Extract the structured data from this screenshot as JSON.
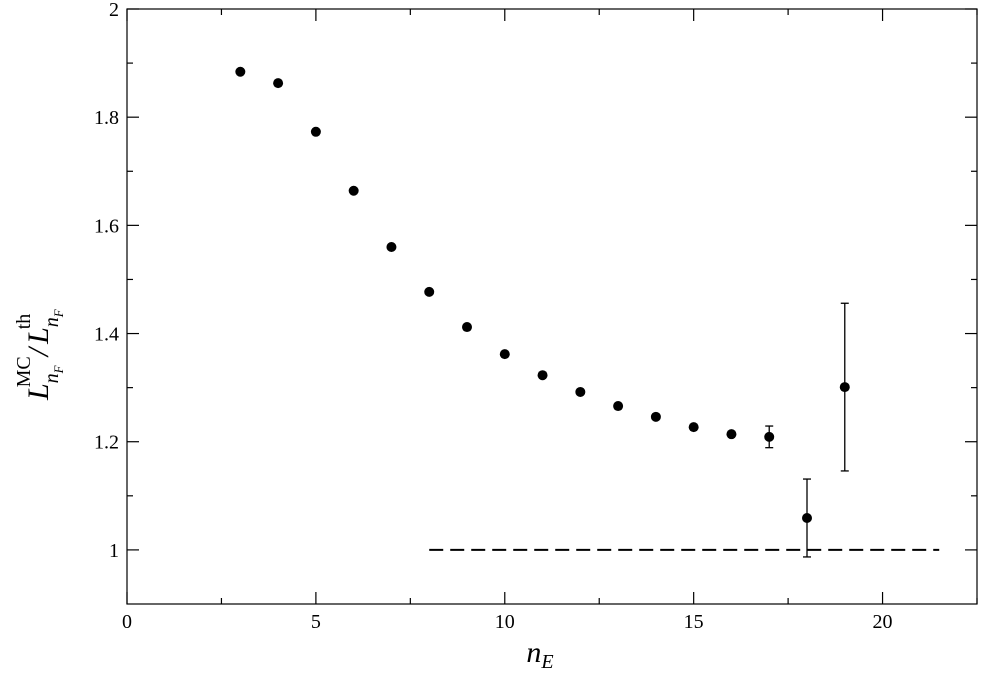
{
  "chart_data": {
    "type": "scatter",
    "x_label": {
      "main": "n",
      "sub": "E"
    },
    "y_label": {
      "num": "L",
      "num_sup": "MC",
      "num_sub": "n",
      "num_subsub": "F",
      "slash": "/",
      "den": "L",
      "den_sup": "th",
      "den_sub": "n",
      "den_subsub": "F"
    },
    "series": [
      {
        "color": "#000000",
        "x": [
          3,
          4,
          5,
          6,
          7,
          8,
          9,
          10,
          11,
          12,
          13,
          14,
          15,
          16,
          17,
          18,
          19
        ],
        "values": [
          1.884,
          1.863,
          1.773,
          1.664,
          1.56,
          1.477,
          1.412,
          1.362,
          1.323,
          1.292,
          1.266,
          1.246,
          1.227,
          1.214,
          1.209,
          1.059,
          1.301
        ],
        "errors": [
          null,
          null,
          null,
          null,
          null,
          null,
          null,
          null,
          null,
          null,
          null,
          null,
          null,
          null,
          0.02,
          0.072,
          0.155
        ]
      }
    ],
    "reference_line": {
      "y": 1,
      "x": [
        8,
        21.5
      ],
      "dashed": true
    },
    "xlim": [
      0,
      22.5
    ],
    "ylim": [
      0.9,
      2
    ],
    "xticks": [
      0,
      5,
      10,
      15,
      20
    ],
    "yticks": [
      1,
      1.2,
      1.4,
      1.6,
      1.8,
      2
    ],
    "xminorticks": [
      2.5,
      7.5,
      12.5,
      17.5,
      22.5
    ],
    "yminorticks": [
      1.1,
      1.3,
      1.5,
      1.7,
      1.9
    ]
  }
}
